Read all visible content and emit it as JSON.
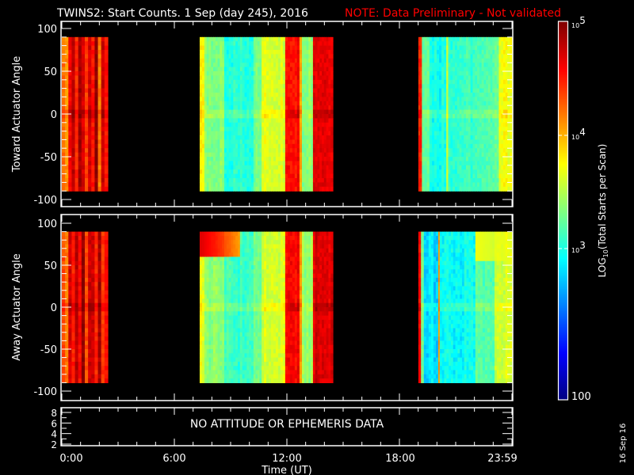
{
  "title": {
    "main": "TWINS2: Start Counts.  1 Sep (day 245), 2016",
    "note": "NOTE: Data Preliminary - Not validated",
    "note_color": "#ff0000"
  },
  "stamp": "16 Sep 16",
  "chart_data": [
    {
      "type": "heatmap",
      "ylabel": "Toward Actuator Angle",
      "ylim": [
        -110,
        110
      ],
      "yticks": [
        "100",
        "50",
        "0",
        "-50",
        "-100"
      ],
      "angle_range": [
        -90,
        90
      ],
      "columns": [
        [
          0.0,
          0.175,
          4.3
        ],
        [
          0.175,
          0.35,
          4.1
        ],
        [
          0.35,
          0.525,
          4.6
        ],
        [
          0.525,
          0.7,
          4.8
        ],
        [
          0.7,
          0.875,
          4.5
        ],
        [
          0.875,
          1.05,
          4.9
        ],
        [
          1.05,
          1.225,
          4.7
        ],
        [
          1.225,
          1.4,
          4.4
        ],
        [
          1.4,
          1.575,
          4.8
        ],
        [
          1.575,
          1.75,
          4.6
        ],
        [
          1.75,
          1.925,
          4.9
        ],
        [
          1.925,
          2.1,
          4.2
        ],
        [
          2.1,
          2.275,
          4.7
        ],
        [
          2.275,
          2.45,
          4.5
        ],
        [
          7.35,
          7.6,
          3.8
        ],
        [
          7.6,
          8.66,
          3.35
        ],
        [
          8.66,
          10.22,
          3.05
        ],
        [
          10.22,
          10.65,
          3.3
        ],
        [
          10.65,
          11.91,
          3.65
        ],
        [
          11.91,
          12.67,
          4.6
        ],
        [
          12.67,
          12.8,
          4.1
        ],
        [
          12.8,
          13.39,
          3.4
        ],
        [
          13.39,
          14.45,
          4.7
        ],
        [
          19.01,
          19.2,
          4.5
        ],
        [
          19.2,
          19.6,
          3.3
        ],
        [
          19.6,
          20.5,
          3.0
        ],
        [
          20.5,
          20.6,
          3.6
        ],
        [
          20.6,
          22.5,
          3.1
        ],
        [
          22.5,
          23.3,
          3.2
        ],
        [
          23.3,
          24.0,
          3.7
        ]
      ],
      "bands": []
    },
    {
      "type": "heatmap",
      "ylabel": "Away Actuator Angle",
      "ylim": [
        -110,
        110
      ],
      "yticks": [
        "100",
        "50",
        "0",
        "-50",
        "-100"
      ],
      "angle_range": [
        -90,
        90
      ],
      "columns": [
        [
          0.0,
          0.175,
          4.4
        ],
        [
          0.175,
          0.35,
          4.2
        ],
        [
          0.35,
          0.525,
          4.7
        ],
        [
          0.525,
          0.7,
          4.5
        ],
        [
          0.7,
          0.875,
          4.8
        ],
        [
          0.875,
          1.05,
          4.6
        ],
        [
          1.05,
          1.225,
          4.9
        ],
        [
          1.225,
          1.4,
          4.3
        ],
        [
          1.4,
          1.575,
          4.7
        ],
        [
          1.575,
          1.75,
          4.8
        ],
        [
          1.75,
          1.925,
          4.5
        ],
        [
          1.925,
          2.1,
          4.9
        ],
        [
          2.1,
          2.275,
          4.4
        ],
        [
          2.275,
          2.45,
          4.6
        ],
        [
          7.35,
          7.6,
          3.7
        ],
        [
          7.6,
          8.66,
          3.35
        ],
        [
          8.66,
          10.22,
          3.1
        ],
        [
          10.22,
          10.65,
          3.3
        ],
        [
          10.65,
          11.91,
          3.6
        ],
        [
          11.91,
          12.67,
          4.6
        ],
        [
          12.67,
          12.8,
          4.1
        ],
        [
          12.8,
          13.39,
          3.4
        ],
        [
          13.39,
          14.45,
          4.7
        ],
        [
          19.01,
          19.15,
          4.6
        ],
        [
          19.15,
          19.3,
          3.3
        ],
        [
          19.3,
          20.07,
          2.85
        ],
        [
          20.07,
          20.15,
          4.0
        ],
        [
          20.15,
          22.05,
          2.95
        ],
        [
          22.05,
          23.07,
          3.2
        ],
        [
          23.07,
          24.0,
          3.6
        ]
      ],
      "bands": [
        [
          7.35,
          9.5,
          60,
          90,
          4.7
        ],
        [
          22.05,
          24.0,
          55,
          90,
          3.7
        ]
      ]
    },
    {
      "type": "line",
      "ylim": [
        1.7,
        8.9
      ],
      "yticks": [
        "8",
        "6",
        "4",
        "2"
      ],
      "message": "NO ATTITUDE OR EPHEMERIS DATA"
    }
  ],
  "xaxis": {
    "label": "Time (UT)",
    "xlim": [
      0,
      24
    ],
    "ticks": [
      "0:00",
      "6:00",
      "12:00",
      "18:00",
      "23:59"
    ]
  },
  "colorbar": {
    "label_prefix": "LOG",
    "label_sub": "10",
    "label_rest": "(Total Starts per Scan)",
    "scale": "log",
    "range": [
      100,
      100000
    ],
    "colormap": "jet",
    "ticks": [
      {
        "base": "10",
        "exp": "5"
      },
      {
        "base": "10",
        "exp": "4"
      },
      {
        "base": "10",
        "exp": "3"
      },
      {
        "base": "100",
        "exp": ""
      }
    ]
  }
}
